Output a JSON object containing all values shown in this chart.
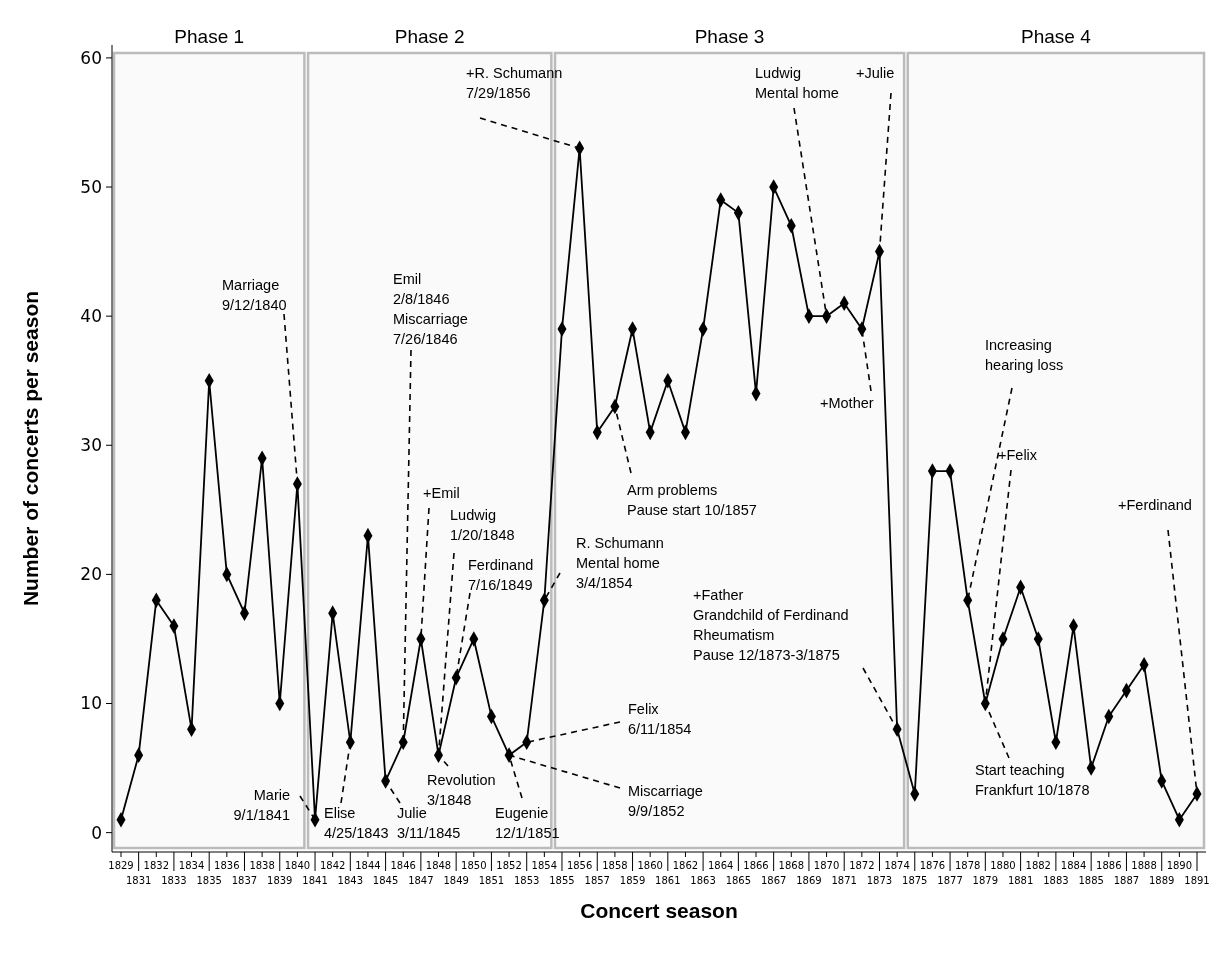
{
  "chart_data": {
    "type": "line",
    "xlabel": "Concert season",
    "ylabel": "Number of concerts per season",
    "categories": [
      "1829",
      "1831",
      "1832",
      "1833",
      "1834",
      "1835",
      "1836",
      "1837",
      "1838",
      "1839",
      "1840",
      "1841",
      "1842",
      "1843",
      "1844",
      "1845",
      "1846",
      "1847",
      "1848",
      "1849",
      "1850",
      "1851",
      "1852",
      "1853",
      "1854",
      "1855",
      "1856",
      "1857",
      "1858",
      "1859",
      "1860",
      "1861",
      "1862",
      "1863",
      "1864",
      "1865",
      "1866",
      "1867",
      "1868",
      "1869",
      "1870",
      "1871",
      "1872",
      "1873",
      "1874",
      "1875",
      "1876",
      "1877",
      "1878",
      "1879",
      "1880",
      "1881",
      "1882",
      "1883",
      "1884",
      "1885",
      "1886",
      "1887",
      "1888",
      "1889",
      "1890",
      "1891"
    ],
    "series": [
      {
        "color": "#000000",
        "values": [
          1,
          6,
          18,
          16,
          8,
          35,
          20,
          17,
          29,
          10,
          27,
          1,
          17,
          7,
          23,
          4,
          7,
          15,
          6,
          12,
          15,
          9,
          6,
          7,
          18,
          39,
          53,
          31,
          33,
          39,
          31,
          35,
          31,
          39,
          49,
          48,
          34,
          50,
          47,
          40,
          40,
          41,
          39,
          45,
          8,
          3,
          28,
          28,
          18,
          10,
          15,
          19,
          15,
          7,
          16,
          5,
          9,
          11,
          13,
          4,
          1,
          3
        ]
      }
    ],
    "ylim": [
      -1.5,
      61
    ],
    "yticks": [
      0,
      10,
      20,
      30,
      40,
      50,
      60
    ],
    "marker": "diamond",
    "line_style": "solid",
    "grid": false,
    "bands": [
      {
        "axis": "x",
        "from": "1829",
        "to": "1840",
        "label": "Phase 1",
        "color": "#bbbbbb"
      },
      {
        "axis": "x",
        "from": "1841",
        "to": "1854",
        "label": "Phase 2",
        "color": "#bbbbbb"
      },
      {
        "axis": "x",
        "from": "1855",
        "to": "1874",
        "label": "Phase 3",
        "color": "#bbbbbb"
      },
      {
        "axis": "x",
        "from": "1875",
        "to": "1891",
        "label": "Phase 4",
        "color": "#bbbbbb"
      }
    ],
    "annotations": [
      {
        "text": "Marriage\n9/12/1840",
        "x": "1840",
        "y": 27
      },
      {
        "text": "Emil\n2/8/1846\nMiscarriage\n7/26/1846",
        "x": "1846",
        "y": 7
      },
      {
        "text": "+Emil",
        "x": "1847",
        "y": 15
      },
      {
        "text": "Ludwig\n1/20/1848",
        "x": "1848",
        "y": 6
      },
      {
        "text": "Ferdinand\n7/16/1849",
        "x": "1849",
        "y": 12
      },
      {
        "text": "+R. Schumann\n7/29/1856",
        "x": "1856",
        "y": 53
      },
      {
        "text": "R. Schumann\nMental home\n3/4/1854",
        "x": "1854",
        "y": 18
      },
      {
        "text": "Arm problems\nPause start 10/1857",
        "x": "1858",
        "y": 33
      },
      {
        "text": "Ludwig\nMental home",
        "x": "1870",
        "y": 40
      },
      {
        "text": "+Julie",
        "x": "1873",
        "y": 45
      },
      {
        "text": "+Mother",
        "x": "1872",
        "y": 39
      },
      {
        "text": "+Father\nGrandchild of Ferdinand\nRheumatism\nPause 12/1873-3/1875",
        "x": "1874",
        "y": 8
      },
      {
        "text": "Increasing\nhearing loss",
        "x": "1878",
        "y": 18
      },
      {
        "text": "+Felix",
        "x": "1879",
        "y": 10
      },
      {
        "text": "Start teaching\nFrankfurt 10/1878",
        "x": "1879",
        "y": 10
      },
      {
        "text": "+Ferdinand",
        "x": "1891",
        "y": 3
      },
      {
        "text": "Marie\n9/1/1841",
        "x": "1841",
        "y": 1
      },
      {
        "text": "Elise\n4/25/1843",
        "x": "1843",
        "y": 7
      },
      {
        "text": "Julie\n3/11/1845",
        "x": "1845",
        "y": 4
      },
      {
        "text": "Revolution\n3/1848",
        "x": "1848",
        "y": 6
      },
      {
        "text": "Eugenie\n12/1/1851",
        "x": "1852",
        "y": 6
      },
      {
        "text": "Felix\n6/11/1854",
        "x": "1853",
        "y": 7
      },
      {
        "text": "Miscarriage\n9/9/1852",
        "x": "1852",
        "y": 6
      }
    ]
  }
}
